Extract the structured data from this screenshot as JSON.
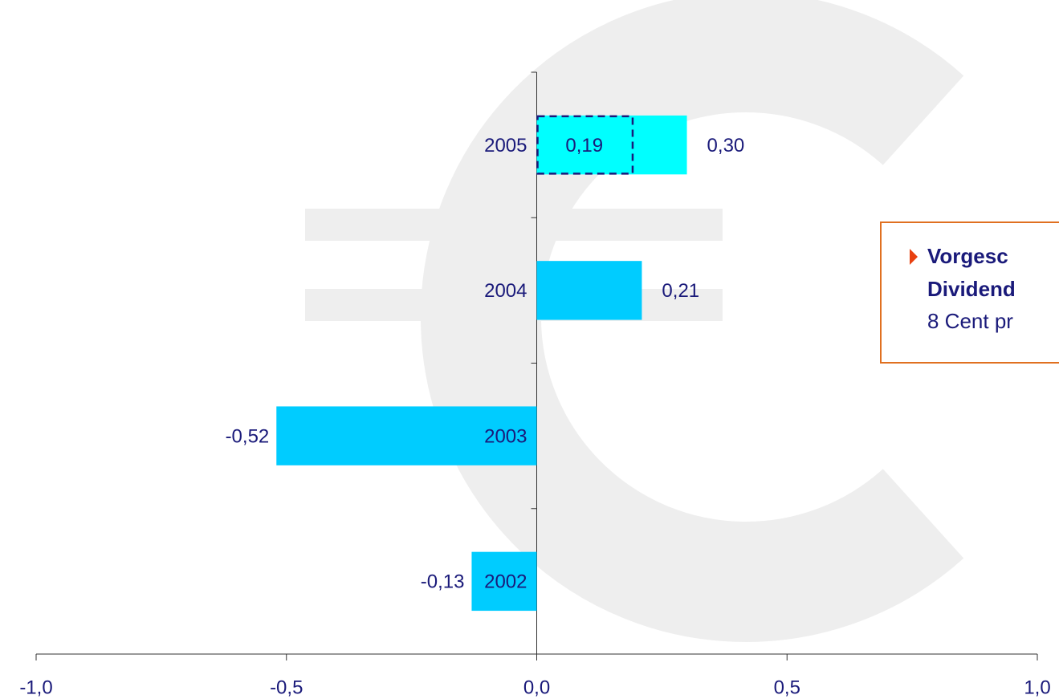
{
  "chart_data": {
    "type": "bar",
    "orientation": "horizontal",
    "categories": [
      "2005",
      "2004",
      "2003",
      "2002"
    ],
    "series": [
      {
        "values": [
          0.3,
          0.21,
          -0.52,
          -0.13
        ],
        "value_labels": [
          "0,30",
          "0,21",
          "-0,52",
          "-0,13"
        ],
        "colors": [
          "#00ffff",
          "#00ccff",
          "#00ccff",
          "#00ccff"
        ]
      },
      {
        "values": [
          0.19,
          null,
          null,
          null
        ],
        "value_labels": [
          "0,19",
          null,
          null,
          null
        ],
        "style": "dashed",
        "color": "#1a1a7a"
      }
    ],
    "xlim": [
      -1.0,
      1.0
    ],
    "xticks": [
      {
        "value": -1.0,
        "label": "-1,0"
      },
      {
        "value": -0.5,
        "label": "-0,5"
      },
      {
        "value": 0,
        "label": "0,0"
      },
      {
        "value": 0.5,
        "label": "0,5"
      },
      {
        "value": 1.0,
        "label": "1,0"
      }
    ],
    "callout": {
      "lines": [
        "Vorgesc",
        "Dividend",
        "8 Cent pr"
      ]
    }
  }
}
